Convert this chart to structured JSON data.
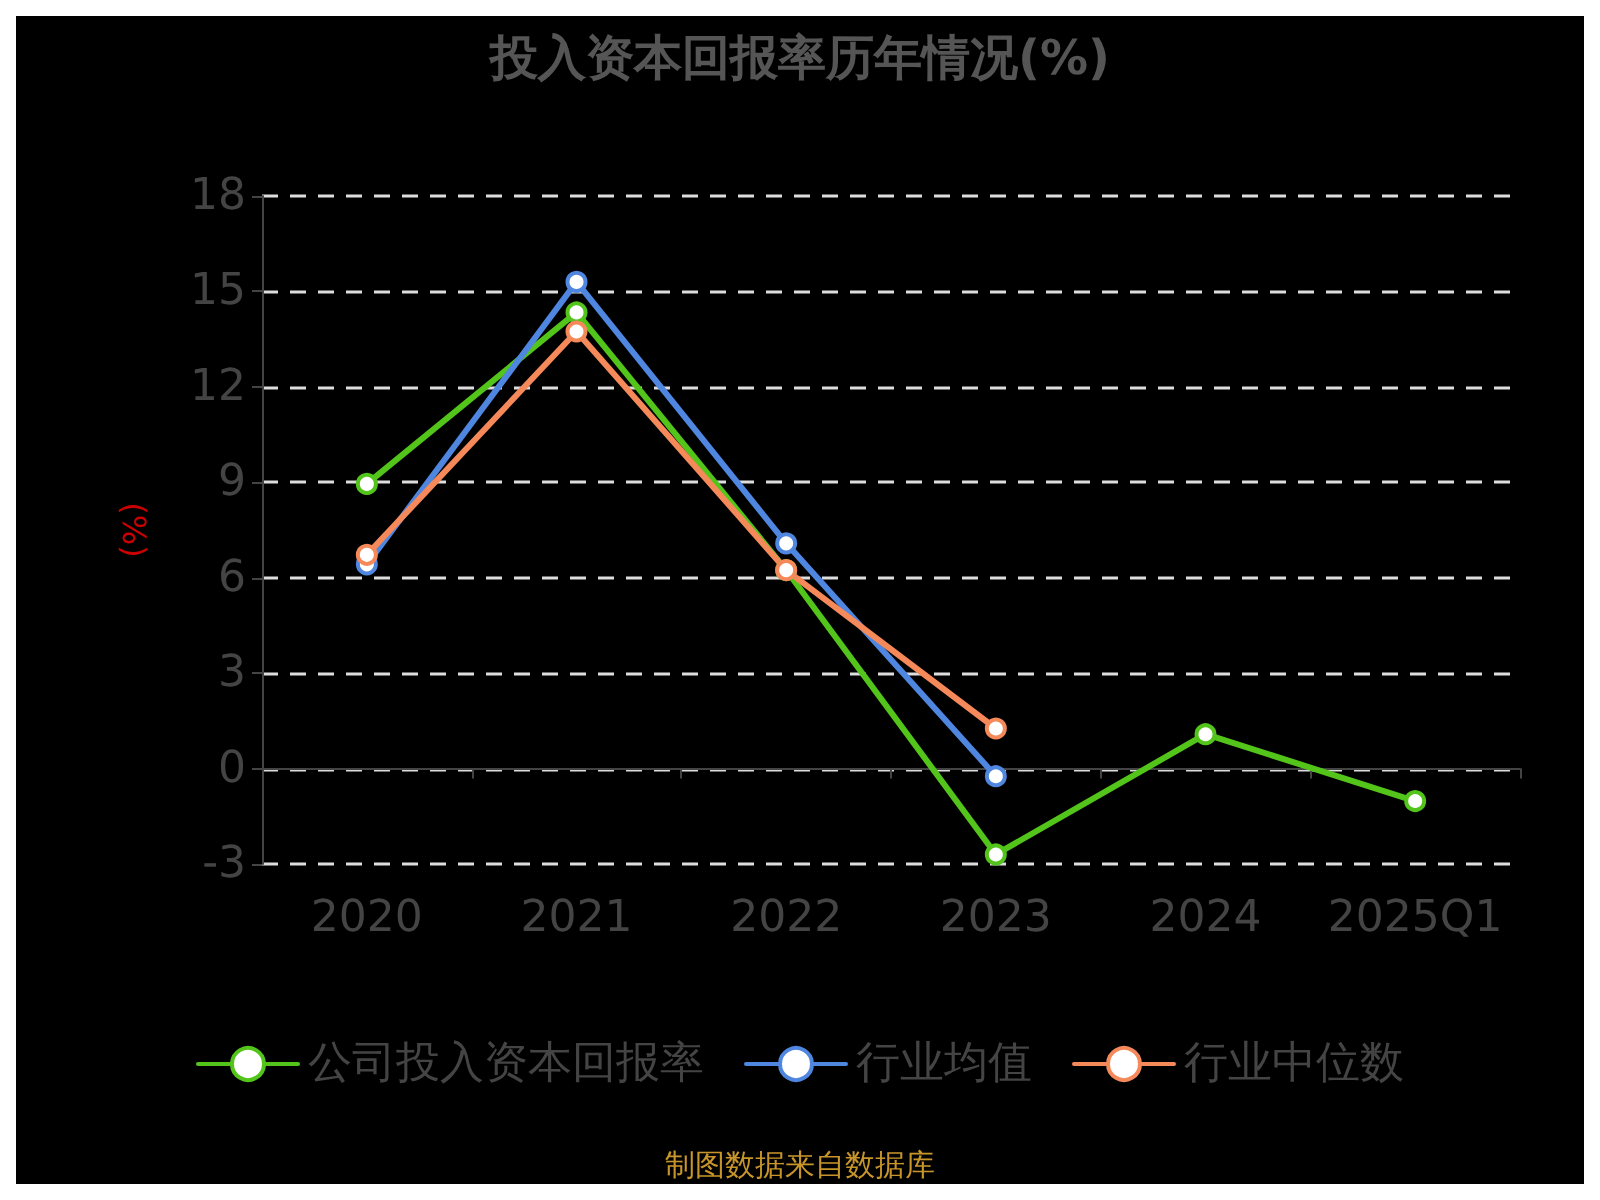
{
  "chart_data": {
    "type": "line",
    "title": "投入资本回报率历年情况(%)",
    "ylabel": "(%)",
    "annotations": [
      "制图数据来自数据库"
    ],
    "categories": [
      "2020",
      "2021",
      "2022",
      "2023",
      "2024",
      "2025Q1"
    ],
    "series": [
      {
        "name": "公司投入资本回报率",
        "color": "#52c41a",
        "values": [
          8.95,
          14.34,
          6.24,
          -2.7,
          1.08,
          -1.02
        ]
      },
      {
        "name": "行业均值",
        "color": "#4f86e0",
        "values": [
          6.42,
          15.3,
          7.08,
          -0.24,
          null,
          null
        ]
      },
      {
        "name": "行业中位数",
        "color": "#f5895a",
        "values": [
          6.72,
          13.74,
          6.24,
          1.26,
          null,
          null
        ]
      }
    ],
    "ylim": [
      -3,
      18
    ],
    "yticks": [
      -3,
      0,
      3,
      6,
      9,
      12,
      15,
      18
    ],
    "grid": "y",
    "legend": "bottom",
    "marker": "circle",
    "line_style": "solid"
  }
}
